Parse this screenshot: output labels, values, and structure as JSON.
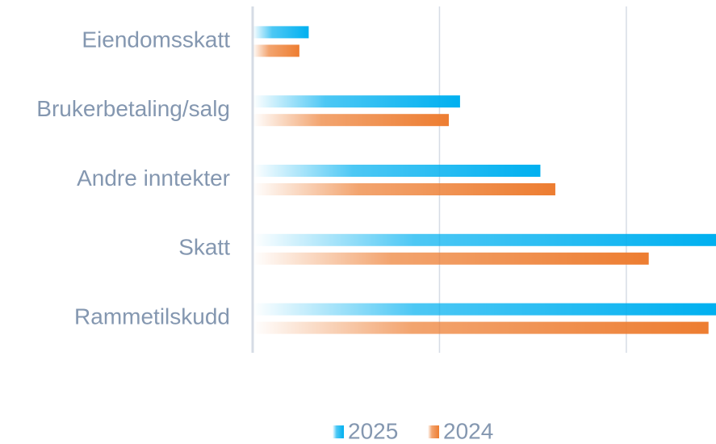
{
  "chart_data": {
    "type": "bar",
    "orientation": "horizontal",
    "categories": [
      "Eiendomsskatt",
      "Brukerbetaling/salg",
      "Andre inntekter",
      "Skatt",
      "Rammetilskudd"
    ],
    "series": [
      {
        "name": "2025",
        "color": "#00b0f0",
        "values": [
          0.3,
          1.11,
          1.54,
          2.48,
          2.48
        ]
      },
      {
        "name": "2024",
        "color": "#ed7d31",
        "values": [
          0.25,
          1.05,
          1.62,
          2.12,
          2.44
        ]
      }
    ],
    "xlim": [
      0,
      2.48
    ],
    "xticks": [
      0,
      1,
      2
    ],
    "grid": true,
    "legend": "bottom"
  }
}
